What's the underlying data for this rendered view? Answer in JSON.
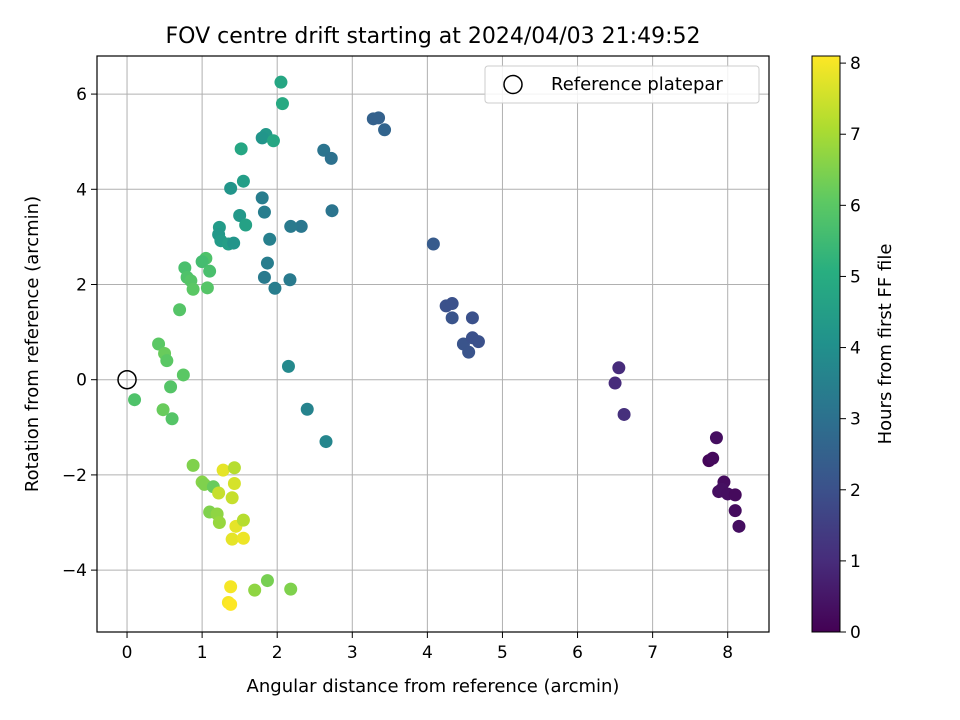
{
  "chart_data": {
    "type": "scatter",
    "title": "FOV centre drift starting at 2024/04/03 21:49:52",
    "xlabel": "Angular distance from reference (arcmin)",
    "ylabel": "Rotation from reference (arcmin)",
    "xlim": [
      -0.4,
      8.55
    ],
    "ylim": [
      -5.3,
      6.8
    ],
    "xticks": [
      0,
      1,
      2,
      3,
      4,
      5,
      6,
      7,
      8
    ],
    "yticks": [
      -4,
      -2,
      0,
      2,
      4,
      6
    ],
    "grid": true,
    "legend": {
      "position": "top-right",
      "entries": [
        "Reference platepar"
      ]
    },
    "reference_point": {
      "x": 0,
      "y": 0
    },
    "colorbar": {
      "label": "Hours from first FF file",
      "range": [
        0,
        8.1
      ],
      "ticks": [
        0,
        1,
        2,
        3,
        4,
        5,
        6,
        7,
        8
      ],
      "colormap": "viridis"
    },
    "points": [
      {
        "x": 7.75,
        "y": -1.7,
        "c": 0.1
      },
      {
        "x": 7.8,
        "y": -1.65,
        "c": 0.2
      },
      {
        "x": 7.85,
        "y": -1.22,
        "c": 0.3
      },
      {
        "x": 7.95,
        "y": -2.15,
        "c": 0.25
      },
      {
        "x": 7.88,
        "y": -2.35,
        "c": 0.3
      },
      {
        "x": 7.92,
        "y": -2.3,
        "c": 0.35
      },
      {
        "x": 8.0,
        "y": -2.4,
        "c": 0.3
      },
      {
        "x": 8.1,
        "y": -2.42,
        "c": 0.2
      },
      {
        "x": 8.1,
        "y": -2.75,
        "c": 0.25
      },
      {
        "x": 8.15,
        "y": -3.08,
        "c": 0.3
      },
      {
        "x": 6.55,
        "y": 0.25,
        "c": 1.0
      },
      {
        "x": 6.5,
        "y": -0.07,
        "c": 1.0
      },
      {
        "x": 6.62,
        "y": -0.73,
        "c": 1.1
      },
      {
        "x": 4.25,
        "y": 1.55,
        "c": 2.0
      },
      {
        "x": 4.33,
        "y": 1.6,
        "c": 2.0
      },
      {
        "x": 4.33,
        "y": 1.3,
        "c": 2.1
      },
      {
        "x": 4.6,
        "y": 1.3,
        "c": 2.0
      },
      {
        "x": 4.48,
        "y": 0.75,
        "c": 2.1
      },
      {
        "x": 4.6,
        "y": 0.88,
        "c": 2.0
      },
      {
        "x": 4.68,
        "y": 0.8,
        "c": 2.0
      },
      {
        "x": 4.55,
        "y": 0.58,
        "c": 2.1
      },
      {
        "x": 4.08,
        "y": 2.85,
        "c": 2.3
      },
      {
        "x": 3.28,
        "y": 5.48,
        "c": 2.5
      },
      {
        "x": 3.35,
        "y": 5.5,
        "c": 2.5
      },
      {
        "x": 3.43,
        "y": 5.25,
        "c": 2.6
      },
      {
        "x": 2.62,
        "y": 4.82,
        "c": 3.1
      },
      {
        "x": 2.72,
        "y": 4.65,
        "c": 3.0
      },
      {
        "x": 2.73,
        "y": 3.55,
        "c": 3.1
      },
      {
        "x": 2.32,
        "y": 3.22,
        "c": 3.2
      },
      {
        "x": 2.18,
        "y": 3.22,
        "c": 3.3
      },
      {
        "x": 1.8,
        "y": 3.82,
        "c": 3.4
      },
      {
        "x": 1.83,
        "y": 3.52,
        "c": 3.4
      },
      {
        "x": 1.9,
        "y": 2.95,
        "c": 3.5
      },
      {
        "x": 1.87,
        "y": 2.45,
        "c": 3.4
      },
      {
        "x": 1.83,
        "y": 2.15,
        "c": 3.3
      },
      {
        "x": 1.97,
        "y": 1.92,
        "c": 3.4
      },
      {
        "x": 2.17,
        "y": 2.1,
        "c": 3.3
      },
      {
        "x": 2.15,
        "y": 0.28,
        "c": 3.8
      },
      {
        "x": 2.4,
        "y": -0.62,
        "c": 3.6
      },
      {
        "x": 2.65,
        "y": -1.3,
        "c": 3.7
      },
      {
        "x": 1.85,
        "y": 5.15,
        "c": 4.3
      },
      {
        "x": 1.8,
        "y": 5.08,
        "c": 4.2
      },
      {
        "x": 1.95,
        "y": 5.02,
        "c": 4.8
      },
      {
        "x": 2.05,
        "y": 6.25,
        "c": 4.8
      },
      {
        "x": 2.07,
        "y": 5.8,
        "c": 4.9
      },
      {
        "x": 1.52,
        "y": 4.85,
        "c": 4.8
      },
      {
        "x": 1.55,
        "y": 4.17,
        "c": 4.5
      },
      {
        "x": 1.38,
        "y": 4.02,
        "c": 4.2
      },
      {
        "x": 1.5,
        "y": 3.45,
        "c": 4.3
      },
      {
        "x": 1.58,
        "y": 3.25,
        "c": 4.6
      },
      {
        "x": 1.23,
        "y": 3.2,
        "c": 4.4
      },
      {
        "x": 1.22,
        "y": 3.05,
        "c": 4.3
      },
      {
        "x": 1.25,
        "y": 2.92,
        "c": 4.4
      },
      {
        "x": 1.35,
        "y": 2.85,
        "c": 4.5
      },
      {
        "x": 1.42,
        "y": 2.87,
        "c": 4.2
      },
      {
        "x": 1.05,
        "y": 2.55,
        "c": 5.8
      },
      {
        "x": 1.0,
        "y": 2.48,
        "c": 5.6
      },
      {
        "x": 1.1,
        "y": 2.28,
        "c": 5.7
      },
      {
        "x": 0.77,
        "y": 2.35,
        "c": 5.7
      },
      {
        "x": 0.8,
        "y": 2.15,
        "c": 5.8
      },
      {
        "x": 0.85,
        "y": 2.08,
        "c": 5.9
      },
      {
        "x": 0.88,
        "y": 1.9,
        "c": 6.0
      },
      {
        "x": 1.07,
        "y": 1.93,
        "c": 5.9
      },
      {
        "x": 0.7,
        "y": 1.47,
        "c": 5.9
      },
      {
        "x": 0.42,
        "y": 0.75,
        "c": 6.0
      },
      {
        "x": 0.5,
        "y": 0.55,
        "c": 6.2
      },
      {
        "x": 0.53,
        "y": 0.4,
        "c": 6.0
      },
      {
        "x": 0.75,
        "y": 0.1,
        "c": 6.0
      },
      {
        "x": 0.58,
        "y": -0.15,
        "c": 5.9
      },
      {
        "x": 0.1,
        "y": -0.42,
        "c": 5.8
      },
      {
        "x": 0.48,
        "y": -0.63,
        "c": 6.2
      },
      {
        "x": 0.6,
        "y": -0.82,
        "c": 5.9
      },
      {
        "x": 0.88,
        "y": -1.8,
        "c": 6.5
      },
      {
        "x": 1.0,
        "y": -2.15,
        "c": 6.6
      },
      {
        "x": 1.03,
        "y": -2.2,
        "c": 6.5
      },
      {
        "x": 1.15,
        "y": -2.25,
        "c": 6.2
      },
      {
        "x": 1.1,
        "y": -2.78,
        "c": 6.5
      },
      {
        "x": 1.2,
        "y": -2.82,
        "c": 6.7
      },
      {
        "x": 1.23,
        "y": -3.0,
        "c": 6.8
      },
      {
        "x": 1.22,
        "y": -2.38,
        "c": 7.4
      },
      {
        "x": 1.28,
        "y": -1.9,
        "c": 7.8
      },
      {
        "x": 1.43,
        "y": -1.85,
        "c": 7.2
      },
      {
        "x": 1.43,
        "y": -2.18,
        "c": 7.6
      },
      {
        "x": 1.4,
        "y": -2.48,
        "c": 7.4
      },
      {
        "x": 1.45,
        "y": -3.08,
        "c": 7.8
      },
      {
        "x": 1.55,
        "y": -2.95,
        "c": 7.2
      },
      {
        "x": 1.4,
        "y": -3.35,
        "c": 7.8
      },
      {
        "x": 1.55,
        "y": -3.33,
        "c": 7.9
      },
      {
        "x": 1.38,
        "y": -4.35,
        "c": 8.0
      },
      {
        "x": 1.35,
        "y": -4.68,
        "c": 8.0
      },
      {
        "x": 1.38,
        "y": -4.72,
        "c": 8.1
      },
      {
        "x": 1.7,
        "y": -4.42,
        "c": 6.7
      },
      {
        "x": 1.87,
        "y": -4.22,
        "c": 6.4
      },
      {
        "x": 2.18,
        "y": -4.4,
        "c": 6.5
      }
    ]
  }
}
